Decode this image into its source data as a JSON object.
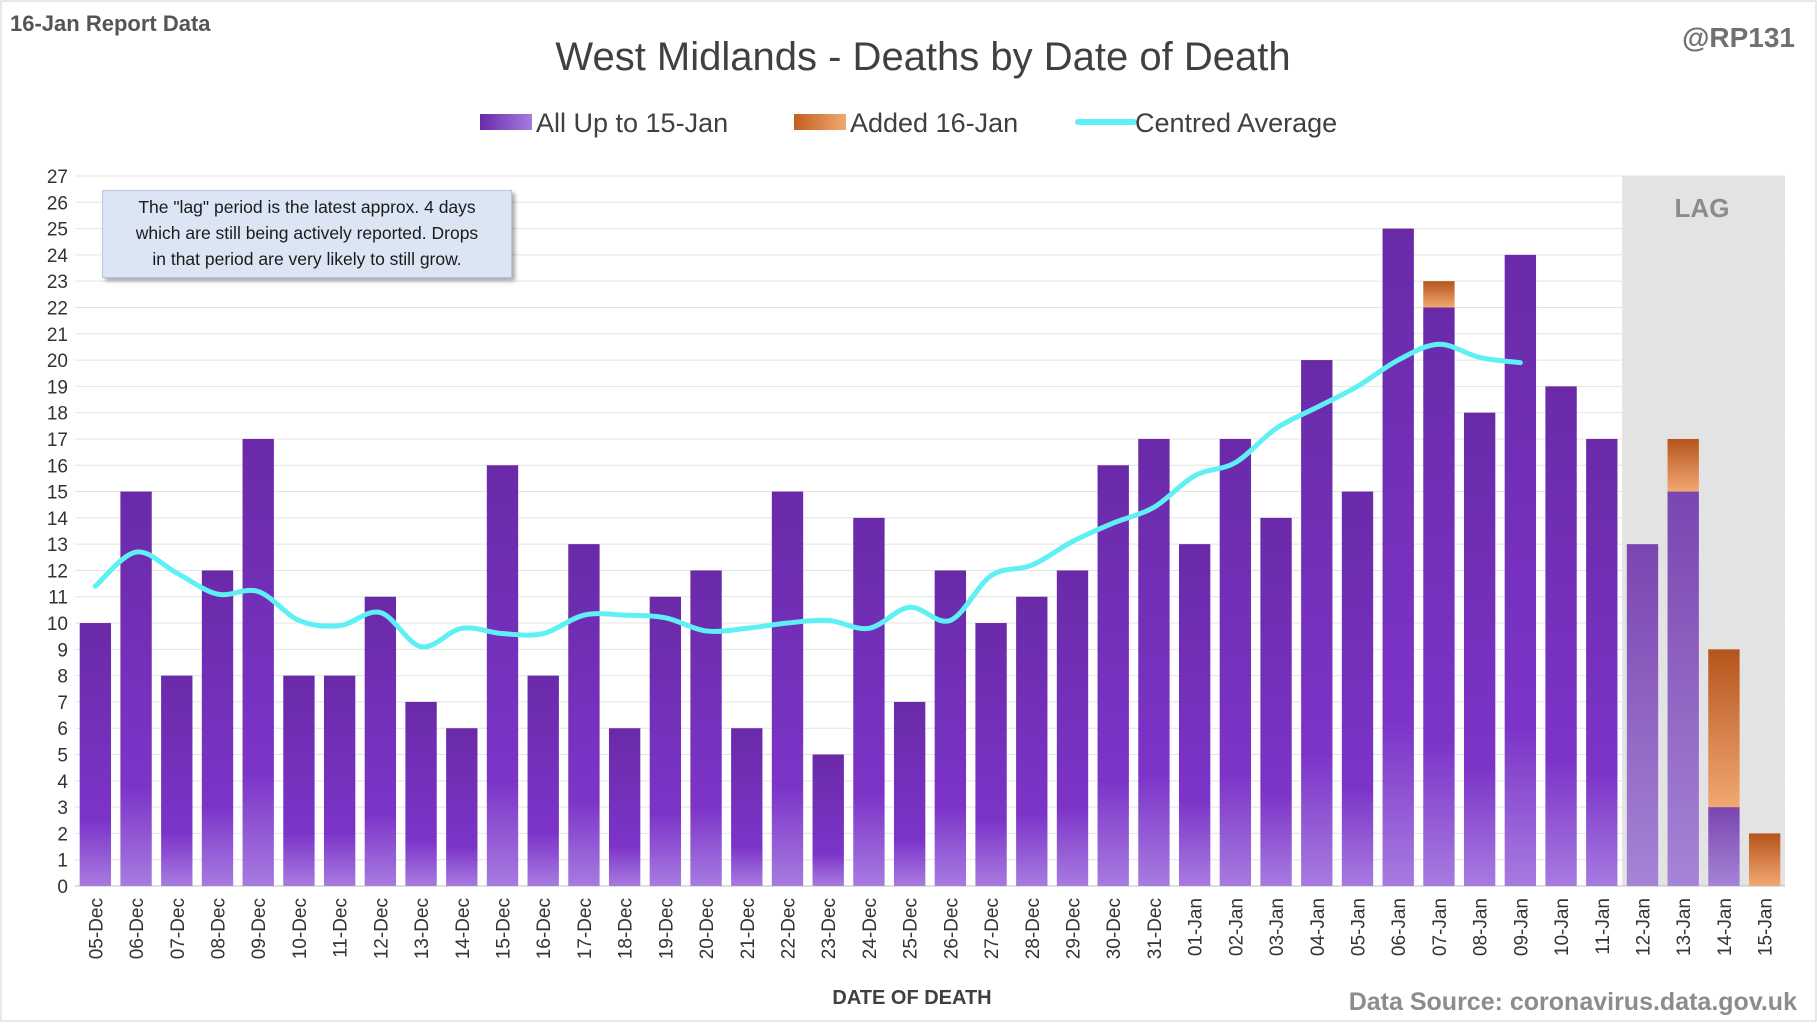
{
  "header": {
    "report_label": "16-Jan Report Data",
    "handle": "@RP131",
    "source": "Data Source: coronavirus.data.gov.uk"
  },
  "annotation": {
    "lines": [
      "The \"lag\" period is the latest approx. 4 days",
      "which are still being actively reported.  Drops",
      "in that period are very likely to still grow."
    ]
  },
  "lag_label": "LAG",
  "colors": {
    "bar_main": "#7a2fc0",
    "bar_lag": "#8a4cc4",
    "bar_added": "#e07b3a",
    "average_line": "#5ff0f5",
    "lag_shade": "#d9d9d9"
  },
  "chart_data": {
    "type": "bar",
    "title": "West Midlands - Deaths by Date of Death",
    "xlabel": "DATE OF DEATH",
    "ylabel": "",
    "ylim": [
      0,
      27
    ],
    "y_ticks": [
      0,
      1,
      2,
      3,
      4,
      5,
      6,
      7,
      8,
      9,
      10,
      11,
      12,
      13,
      14,
      15,
      16,
      17,
      18,
      19,
      20,
      21,
      22,
      23,
      24,
      25,
      26,
      27
    ],
    "categories": [
      "05-Dec",
      "06-Dec",
      "07-Dec",
      "08-Dec",
      "09-Dec",
      "10-Dec",
      "11-Dec",
      "12-Dec",
      "13-Dec",
      "14-Dec",
      "15-Dec",
      "16-Dec",
      "17-Dec",
      "18-Dec",
      "19-Dec",
      "20-Dec",
      "21-Dec",
      "22-Dec",
      "23-Dec",
      "24-Dec",
      "25-Dec",
      "26-Dec",
      "27-Dec",
      "28-Dec",
      "29-Dec",
      "30-Dec",
      "31-Dec",
      "01-Jan",
      "02-Jan",
      "03-Jan",
      "04-Jan",
      "05-Jan",
      "06-Jan",
      "07-Jan",
      "08-Jan",
      "09-Jan",
      "10-Jan",
      "11-Jan",
      "12-Jan",
      "13-Jan",
      "14-Jan",
      "15-Jan"
    ],
    "lag_categories": [
      "12-Jan",
      "13-Jan",
      "14-Jan",
      "15-Jan"
    ],
    "series": [
      {
        "name": "All Up to 15-Jan",
        "kind": "bar",
        "values": [
          10,
          15,
          8,
          12,
          17,
          8,
          8,
          11,
          7,
          6,
          16,
          8,
          13,
          6,
          11,
          12,
          6,
          15,
          5,
          14,
          7,
          12,
          10,
          11,
          12,
          16,
          17,
          13,
          17,
          14,
          20,
          15,
          25,
          22,
          18,
          24,
          19,
          17,
          13,
          15,
          3,
          0
        ]
      },
      {
        "name": "Added 16-Jan",
        "kind": "bar",
        "values": [
          0,
          0,
          0,
          0,
          0,
          0,
          0,
          0,
          0,
          0,
          0,
          0,
          0,
          0,
          0,
          0,
          0,
          0,
          0,
          0,
          0,
          0,
          0,
          0,
          0,
          0,
          0,
          0,
          0,
          0,
          0,
          0,
          0,
          1,
          0,
          0,
          0,
          0,
          0,
          2,
          6,
          2
        ]
      },
      {
        "name": "Centred Average",
        "kind": "line",
        "values": [
          11.4,
          12.7,
          11.9,
          11.1,
          11.2,
          10.1,
          9.9,
          10.4,
          9.1,
          9.8,
          9.6,
          9.6,
          10.3,
          10.3,
          10.2,
          9.7,
          9.8,
          10.0,
          10.1,
          9.8,
          10.6,
          10.1,
          11.8,
          12.2,
          13.1,
          13.8,
          14.4,
          15.6,
          16.1,
          17.4,
          18.2,
          19.0,
          20.0,
          20.6,
          20.1,
          19.9,
          null,
          null,
          null,
          null,
          null,
          null
        ]
      }
    ],
    "legend": {
      "position": "top-center",
      "entries": [
        "All Up to 15-Jan",
        "Added 16-Jan",
        "Centred Average"
      ]
    }
  }
}
